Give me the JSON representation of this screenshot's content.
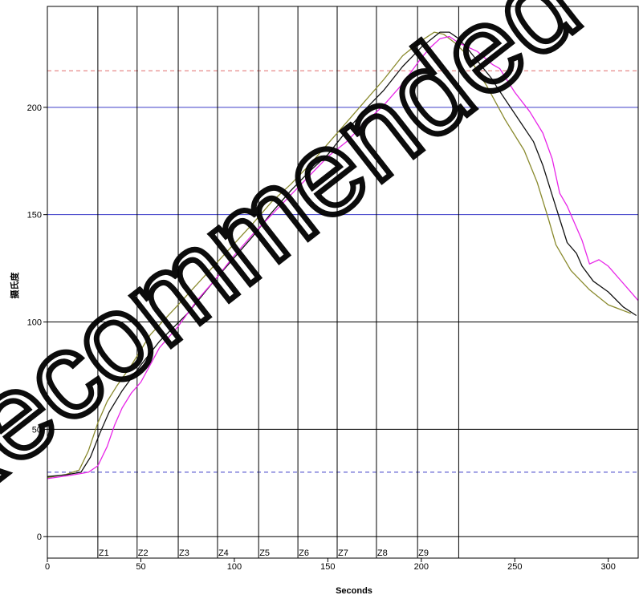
{
  "watermark": "Recommended",
  "chart_data": {
    "type": "line",
    "xlabel": "Seconds",
    "ylabel": "摄氏度",
    "xlim": [
      0,
      316
    ],
    "ylim": [
      -10,
      247
    ],
    "x_ticks": [
      0,
      50,
      100,
      150,
      200,
      250,
      300
    ],
    "y_ticks": [
      0,
      50,
      100,
      150,
      200
    ],
    "x_tick_labels": [
      "0",
      "50",
      "100",
      "150",
      "200",
      "250",
      "300"
    ],
    "y_tick_labels": [
      "0",
      "50",
      "100",
      "150",
      "200"
    ],
    "grid": {
      "horizontal": true,
      "vertical_zone_lines": true
    },
    "reference_lines": [
      {
        "y": 200,
        "color": "#3b3bc8",
        "style": "solid"
      },
      {
        "y": 150,
        "color": "#3b3bc8",
        "style": "solid"
      },
      {
        "y": 217,
        "color": "#e06c6c",
        "style": "dashed"
      },
      {
        "y": 30,
        "color": "#3b3bc8",
        "style": "dashed"
      }
    ],
    "zones": [
      {
        "label": "Z1",
        "start": 27
      },
      {
        "label": "Z2",
        "start": 48
      },
      {
        "label": "Z3",
        "start": 70
      },
      {
        "label": "Z4",
        "start": 91
      },
      {
        "label": "Z5",
        "start": 113
      },
      {
        "label": "Z6",
        "start": 134
      },
      {
        "label": "Z7",
        "start": 155
      },
      {
        "label": "Z8",
        "start": 176
      },
      {
        "label": "Z9",
        "start": 198
      }
    ],
    "zone_end": 220,
    "series": [
      {
        "color": "#8a8a2e",
        "points": [
          [
            0,
            27.5
          ],
          [
            10,
            29
          ],
          [
            17,
            31
          ],
          [
            22,
            40
          ],
          [
            27,
            53
          ],
          [
            32,
            63
          ],
          [
            37,
            70
          ],
          [
            45,
            80
          ],
          [
            55,
            94
          ],
          [
            70,
            108
          ],
          [
            90,
            127
          ],
          [
            110,
            146
          ],
          [
            120,
            156
          ],
          [
            130,
            164
          ],
          [
            140,
            173
          ],
          [
            150,
            183
          ],
          [
            160,
            193
          ],
          [
            170,
            203
          ],
          [
            180,
            213
          ],
          [
            190,
            224
          ],
          [
            200,
            231
          ],
          [
            207,
            235
          ],
          [
            212,
            234
          ],
          [
            218,
            230
          ],
          [
            225,
            224
          ],
          [
            235,
            210
          ],
          [
            245,
            194
          ],
          [
            255,
            180
          ],
          [
            262,
            165
          ],
          [
            268,
            148
          ],
          [
            272,
            136
          ],
          [
            280,
            124
          ],
          [
            290,
            115
          ],
          [
            300,
            108
          ],
          [
            312,
            104
          ]
        ]
      },
      {
        "color": "#111111",
        "points": [
          [
            0,
            28
          ],
          [
            10,
            28.8
          ],
          [
            18,
            30
          ],
          [
            23,
            37
          ],
          [
            28,
            48
          ],
          [
            33,
            58
          ],
          [
            40,
            68
          ],
          [
            50,
            80
          ],
          [
            60,
            91
          ],
          [
            75,
            104
          ],
          [
            90,
            120
          ],
          [
            110,
            140
          ],
          [
            120,
            151
          ],
          [
            130,
            161
          ],
          [
            140,
            170
          ],
          [
            150,
            178
          ],
          [
            160,
            189
          ],
          [
            170,
            199
          ],
          [
            180,
            208
          ],
          [
            190,
            219
          ],
          [
            200,
            228
          ],
          [
            210,
            235
          ],
          [
            215,
            235
          ],
          [
            220,
            232
          ],
          [
            225,
            227
          ],
          [
            238,
            213
          ],
          [
            240,
            210
          ],
          [
            250,
            197
          ],
          [
            260,
            184
          ],
          [
            265,
            173
          ],
          [
            270,
            159
          ],
          [
            274,
            148
          ],
          [
            278,
            137
          ],
          [
            283,
            132
          ],
          [
            286,
            126
          ],
          [
            292,
            119
          ],
          [
            300,
            114
          ],
          [
            308,
            107
          ],
          [
            315,
            103
          ]
        ]
      },
      {
        "color": "#e825e8",
        "points": [
          [
            0,
            27
          ],
          [
            12,
            28.5
          ],
          [
            22,
            30
          ],
          [
            27,
            33
          ],
          [
            32,
            42
          ],
          [
            36,
            52
          ],
          [
            40,
            60
          ],
          [
            45,
            67
          ],
          [
            50,
            72
          ],
          [
            55,
            80
          ],
          [
            60,
            88
          ],
          [
            70,
            98
          ],
          [
            80,
            110
          ],
          [
            90,
            120
          ],
          [
            100,
            131
          ],
          [
            110,
            141
          ],
          [
            120,
            150
          ],
          [
            130,
            159
          ],
          [
            140,
            168
          ],
          [
            150,
            177
          ],
          [
            160,
            184
          ],
          [
            170,
            193
          ],
          [
            180,
            201
          ],
          [
            190,
            211
          ],
          [
            195,
            217
          ],
          [
            200,
            223
          ],
          [
            205,
            228
          ],
          [
            210,
            232
          ],
          [
            215,
            233
          ],
          [
            220,
            230
          ],
          [
            230,
            226
          ],
          [
            238,
            220
          ],
          [
            242,
            218
          ],
          [
            250,
            207
          ],
          [
            258,
            198
          ],
          [
            265,
            188
          ],
          [
            270,
            176
          ],
          [
            274,
            160
          ],
          [
            278,
            154
          ],
          [
            282,
            146
          ],
          [
            286,
            138
          ],
          [
            290,
            127
          ],
          [
            295,
            129
          ],
          [
            300,
            126
          ],
          [
            306,
            120
          ],
          [
            313,
            113
          ],
          [
            316,
            110
          ]
        ]
      }
    ]
  }
}
